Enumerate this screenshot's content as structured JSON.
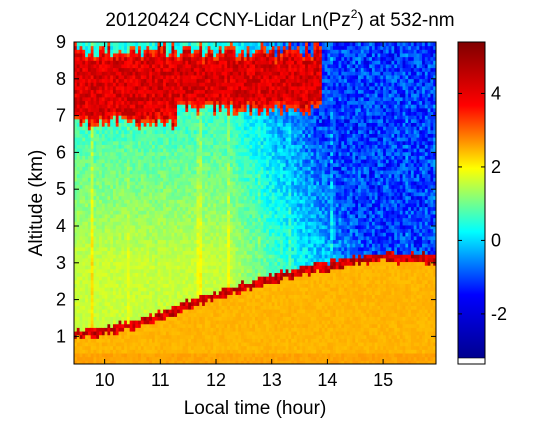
{
  "chart_data": {
    "type": "heatmap",
    "title_prefix": "20120424 CCNY-Lidar Ln(Pz",
    "title_sup": "2",
    "title_suffix": ") at 532-nm",
    "xlabel": "Local time (hour)",
    "ylabel": "Altitude (km)",
    "xlim": [
      9.45,
      15.95
    ],
    "ylim": [
      0.25,
      9.0
    ],
    "x_ticks": [
      10,
      11,
      12,
      13,
      14,
      15
    ],
    "y_ticks": [
      1,
      2,
      3,
      4,
      5,
      6,
      7,
      8,
      9
    ],
    "colorbar": {
      "range": [
        -3.2,
        5.4
      ],
      "ticks": [
        -2,
        0,
        2,
        4
      ],
      "colormap": "jet",
      "colormap_stops": [
        "#00008f",
        "#0000ff",
        "#00ffff",
        "#ffff00",
        "#ff0000",
        "#800000"
      ]
    },
    "features": {
      "boundary_layer_top_km": [
        {
          "x": 9.7,
          "y": 1.0
        },
        {
          "x": 10.5,
          "y": 1.25
        },
        {
          "x": 11.0,
          "y": 1.5
        },
        {
          "x": 11.5,
          "y": 1.8
        },
        {
          "x": 12.0,
          "y": 2.05
        },
        {
          "x": 12.5,
          "y": 2.3
        },
        {
          "x": 13.0,
          "y": 2.5
        },
        {
          "x": 13.5,
          "y": 2.7
        },
        {
          "x": 14.0,
          "y": 2.85
        },
        {
          "x": 14.5,
          "y": 3.0
        },
        {
          "x": 15.0,
          "y": 3.1
        },
        {
          "x": 15.9,
          "y": 3.05
        }
      ],
      "cloud_layer": {
        "x_start": 9.45,
        "x_end": 13.9,
        "bottom_km": 6.8,
        "top_km": 8.8,
        "value": 4.6
      },
      "background_values": {
        "near_surface": 2.8,
        "free_troposphere_early": 1.7,
        "free_troposphere_late": -1.6
      }
    }
  }
}
